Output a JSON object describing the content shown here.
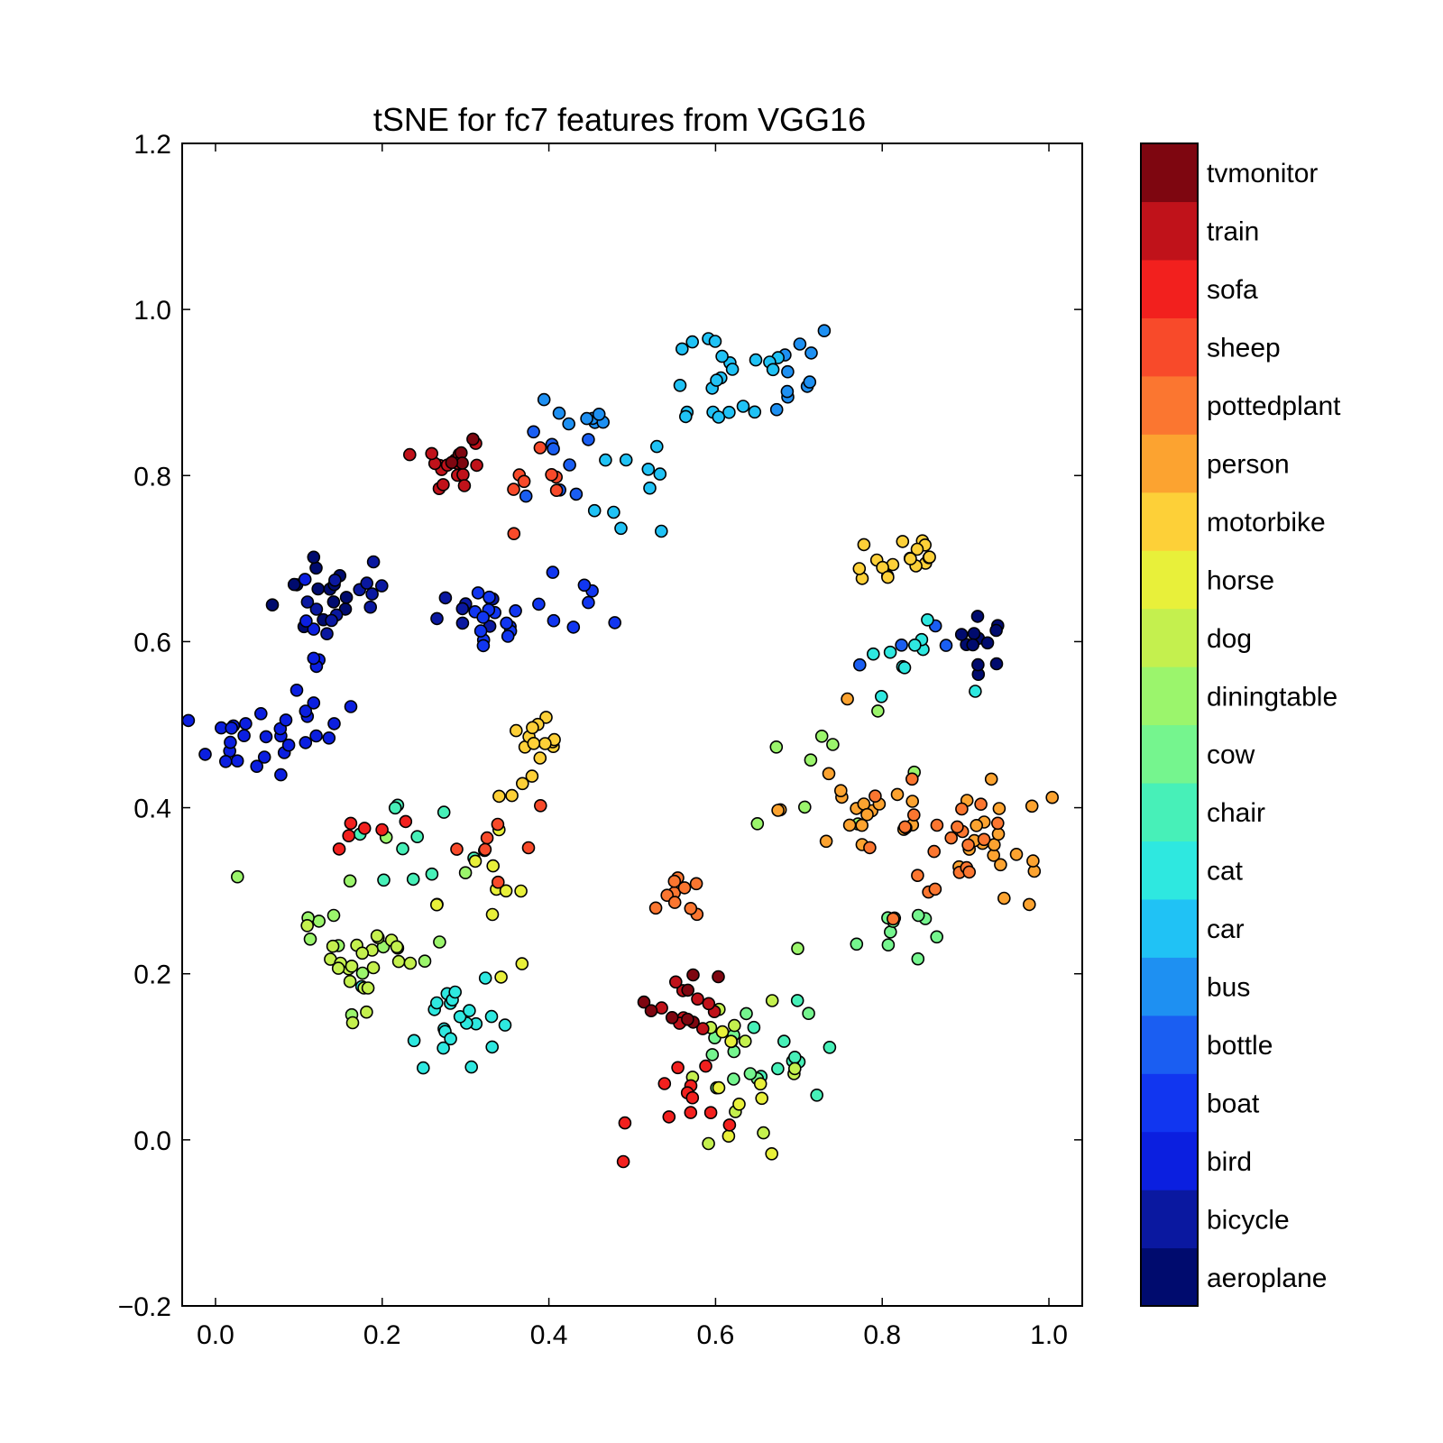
{
  "chart_data": {
    "type": "scatter",
    "title": "tSNE for fc7 features from VGG16",
    "xlabel": "",
    "ylabel": "",
    "xlim": [
      -0.04,
      1.04
    ],
    "ylim": [
      -0.2,
      1.2
    ],
    "xticks": [
      "0.0",
      "0.2",
      "0.4",
      "0.6",
      "0.8",
      "1.0"
    ],
    "xtick_values": [
      0.0,
      0.2,
      0.4,
      0.6,
      0.8,
      1.0
    ],
    "yticks": [
      "−0.2",
      "0.0",
      "0.2",
      "0.4",
      "0.6",
      "0.8",
      "1.0",
      "1.2"
    ],
    "ytick_values": [
      -0.2,
      0.0,
      0.2,
      0.4,
      0.6,
      0.8,
      1.0,
      1.2
    ],
    "grid": false,
    "colorbar_position": "right",
    "classes": [
      {
        "name": "aeroplane",
        "color": "#000b6e"
      },
      {
        "name": "bicycle",
        "color": "#0a18a0"
      },
      {
        "name": "bird",
        "color": "#0b1fe0"
      },
      {
        "name": "boat",
        "color": "#1136f0"
      },
      {
        "name": "bottle",
        "color": "#1a5ef2"
      },
      {
        "name": "bus",
        "color": "#1e90f2"
      },
      {
        "name": "car",
        "color": "#20c2f5"
      },
      {
        "name": "cat",
        "color": "#2ee8e0"
      },
      {
        "name": "chair",
        "color": "#47f0b8"
      },
      {
        "name": "cow",
        "color": "#75f58e"
      },
      {
        "name": "diningtable",
        "color": "#9bf56c"
      },
      {
        "name": "dog",
        "color": "#c4f04e"
      },
      {
        "name": "horse",
        "color": "#e8f03a"
      },
      {
        "name": "motorbike",
        "color": "#fdd038"
      },
      {
        "name": "person",
        "color": "#fca330"
      },
      {
        "name": "pottedplant",
        "color": "#fb7630"
      },
      {
        "name": "sheep",
        "color": "#f84a2a"
      },
      {
        "name": "sofa",
        "color": "#f2201e"
      },
      {
        "name": "train",
        "color": "#c0121a"
      },
      {
        "name": "tvmonitor",
        "color": "#7e0610"
      }
    ],
    "clusters": [
      {
        "class": "aeroplane",
        "cx": 0.13,
        "cy": 0.66,
        "sx": 0.03,
        "sy": 0.03,
        "n": 14
      },
      {
        "class": "aeroplane",
        "cx": 0.92,
        "cy": 0.6,
        "sx": 0.015,
        "sy": 0.015,
        "n": 12
      },
      {
        "class": "bicycle",
        "cx": 0.17,
        "cy": 0.65,
        "sx": 0.03,
        "sy": 0.03,
        "n": 12
      },
      {
        "class": "bicycle",
        "cx": 0.3,
        "cy": 0.63,
        "sx": 0.02,
        "sy": 0.015,
        "n": 8
      },
      {
        "class": "bird",
        "cx": 0.05,
        "cy": 0.48,
        "sx": 0.04,
        "sy": 0.02,
        "n": 24
      },
      {
        "class": "bird",
        "cx": 0.12,
        "cy": 0.55,
        "sx": 0.02,
        "sy": 0.05,
        "n": 12
      },
      {
        "class": "boat",
        "cx": 0.33,
        "cy": 0.62,
        "sx": 0.02,
        "sy": 0.02,
        "n": 14
      },
      {
        "class": "boat",
        "cx": 0.44,
        "cy": 0.64,
        "sx": 0.03,
        "sy": 0.02,
        "n": 8
      },
      {
        "class": "bottle",
        "cx": 0.42,
        "cy": 0.82,
        "sx": 0.025,
        "sy": 0.03,
        "n": 8
      },
      {
        "class": "bottle",
        "cx": 0.82,
        "cy": 0.6,
        "sx": 0.03,
        "sy": 0.02,
        "n": 4
      },
      {
        "class": "bus",
        "cx": 0.44,
        "cy": 0.87,
        "sx": 0.02,
        "sy": 0.02,
        "n": 8
      },
      {
        "class": "bus",
        "cx": 0.67,
        "cy": 0.93,
        "sx": 0.04,
        "sy": 0.03,
        "n": 10
      },
      {
        "class": "car",
        "cx": 0.61,
        "cy": 0.92,
        "sx": 0.05,
        "sy": 0.04,
        "n": 22
      },
      {
        "class": "car",
        "cx": 0.52,
        "cy": 0.8,
        "sx": 0.03,
        "sy": 0.05,
        "n": 10
      },
      {
        "class": "cat",
        "cx": 0.28,
        "cy": 0.15,
        "sx": 0.03,
        "sy": 0.03,
        "n": 22
      },
      {
        "class": "cat",
        "cx": 0.83,
        "cy": 0.58,
        "sx": 0.03,
        "sy": 0.02,
        "n": 10
      },
      {
        "class": "chair",
        "cx": 0.7,
        "cy": 0.1,
        "sx": 0.03,
        "sy": 0.03,
        "n": 10
      },
      {
        "class": "chair",
        "cx": 0.22,
        "cy": 0.36,
        "sx": 0.05,
        "sy": 0.05,
        "n": 10
      },
      {
        "class": "cow",
        "cx": 0.81,
        "cy": 0.25,
        "sx": 0.02,
        "sy": 0.02,
        "n": 10
      },
      {
        "class": "cow",
        "cx": 0.63,
        "cy": 0.1,
        "sx": 0.04,
        "sy": 0.03,
        "n": 10
      },
      {
        "class": "diningtable",
        "cx": 0.2,
        "cy": 0.3,
        "sx": 0.06,
        "sy": 0.07,
        "n": 16
      },
      {
        "class": "diningtable",
        "cx": 0.75,
        "cy": 0.4,
        "sx": 0.05,
        "sy": 0.05,
        "n": 10
      },
      {
        "class": "dog",
        "cx": 0.18,
        "cy": 0.22,
        "sx": 0.04,
        "sy": 0.03,
        "n": 22
      },
      {
        "class": "dog",
        "cx": 0.63,
        "cy": 0.08,
        "sx": 0.04,
        "sy": 0.04,
        "n": 12
      },
      {
        "class": "horse",
        "cx": 0.33,
        "cy": 0.3,
        "sx": 0.04,
        "sy": 0.06,
        "n": 10
      },
      {
        "class": "horse",
        "cx": 0.6,
        "cy": 0.06,
        "sx": 0.03,
        "sy": 0.03,
        "n": 8
      },
      {
        "class": "motorbike",
        "cx": 0.39,
        "cy": 0.46,
        "sx": 0.025,
        "sy": 0.025,
        "n": 16
      },
      {
        "class": "motorbike",
        "cx": 0.82,
        "cy": 0.7,
        "sx": 0.03,
        "sy": 0.02,
        "n": 18
      },
      {
        "class": "person",
        "cx": 0.78,
        "cy": 0.4,
        "sx": 0.05,
        "sy": 0.04,
        "n": 20
      },
      {
        "class": "person",
        "cx": 0.94,
        "cy": 0.35,
        "sx": 0.04,
        "sy": 0.04,
        "n": 20
      },
      {
        "class": "pottedplant",
        "cx": 0.86,
        "cy": 0.34,
        "sx": 0.05,
        "sy": 0.05,
        "n": 22
      },
      {
        "class": "pottedplant",
        "cx": 0.56,
        "cy": 0.29,
        "sx": 0.012,
        "sy": 0.012,
        "n": 10
      },
      {
        "class": "sheep",
        "cx": 0.33,
        "cy": 0.36,
        "sx": 0.04,
        "sy": 0.03,
        "n": 8
      },
      {
        "class": "sheep",
        "cx": 0.38,
        "cy": 0.76,
        "sx": 0.03,
        "sy": 0.03,
        "n": 8
      },
      {
        "class": "sofa",
        "cx": 0.58,
        "cy": 0.05,
        "sx": 0.04,
        "sy": 0.03,
        "n": 12
      },
      {
        "class": "sofa",
        "cx": 0.18,
        "cy": 0.37,
        "sx": 0.02,
        "sy": 0.02,
        "n": 6
      },
      {
        "class": "train",
        "cx": 0.29,
        "cy": 0.81,
        "sx": 0.02,
        "sy": 0.015,
        "n": 16
      },
      {
        "class": "train",
        "cx": 0.56,
        "cy": 0.17,
        "sx": 0.025,
        "sy": 0.02,
        "n": 10
      },
      {
        "class": "tvmonitor",
        "cx": 0.57,
        "cy": 0.17,
        "sx": 0.025,
        "sy": 0.02,
        "n": 8
      },
      {
        "class": "tvmonitor",
        "cx": 0.3,
        "cy": 0.82,
        "sx": 0.015,
        "sy": 0.01,
        "n": 4
      }
    ]
  }
}
